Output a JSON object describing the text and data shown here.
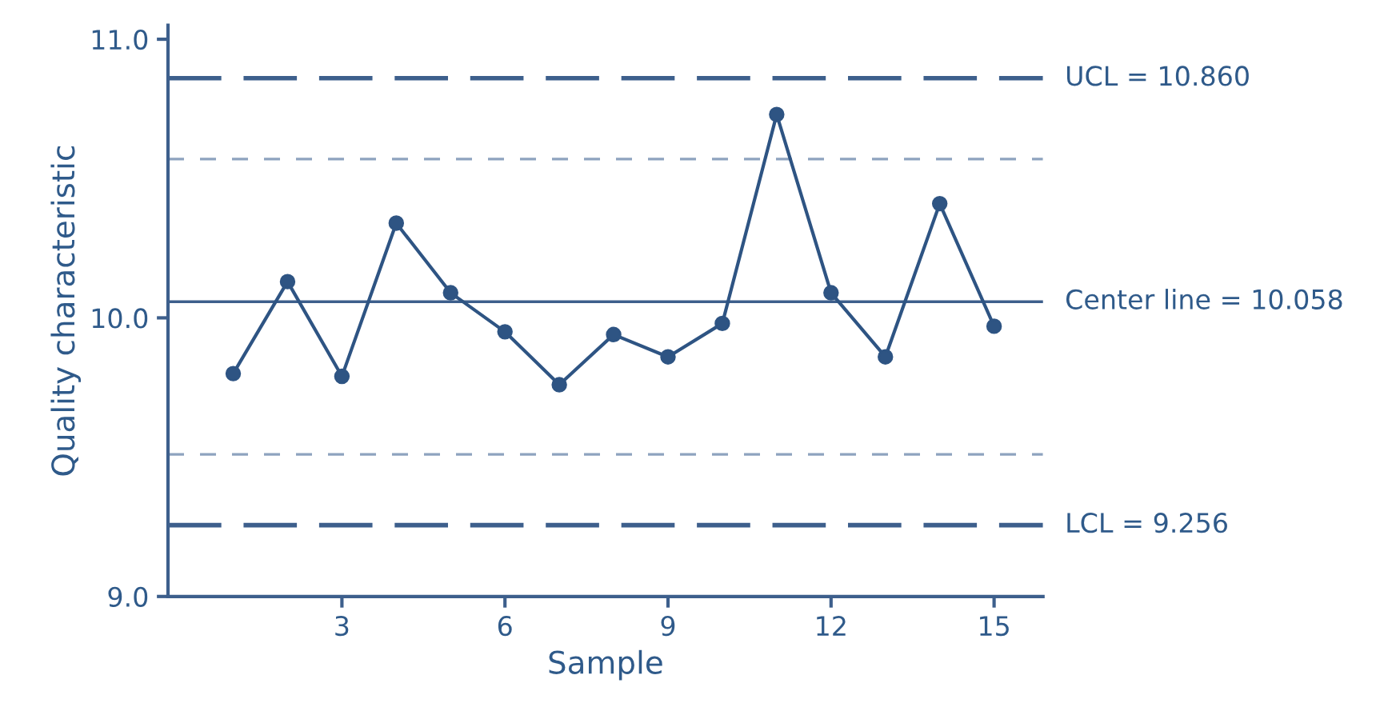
{
  "chart_data": {
    "type": "line",
    "xlabel": "Sample",
    "ylabel": "Quality characteristic",
    "x": [
      1,
      2,
      3,
      4,
      5,
      6,
      7,
      8,
      9,
      10,
      11,
      12,
      13,
      14,
      15
    ],
    "series": [
      {
        "color": "#2e5483",
        "values": [
          9.8,
          10.13,
          9.79,
          10.34,
          10.09,
          9.95,
          9.76,
          9.94,
          9.86,
          9.98,
          10.73,
          10.09,
          9.86,
          10.41,
          9.97
        ]
      }
    ],
    "marker": "circle",
    "line_style": "solid",
    "xlim": [
      -0.2,
      15.9
    ],
    "xticks": [
      3,
      6,
      9,
      12,
      15
    ],
    "ylim": [
      9.0,
      11.05
    ],
    "yticks": [
      {
        "value": 9.0,
        "label": "9.0"
      },
      {
        "value": 10.0,
        "label": "10.0"
      },
      {
        "value": 11.0,
        "label": "11.0"
      }
    ],
    "ref_lines": [
      {
        "axis": "y",
        "value": 10.86,
        "label": "UCL = 10.860",
        "color": "#3d5f8c",
        "line_style": "longdash"
      },
      {
        "axis": "y",
        "value": 10.57,
        "label": null,
        "color": "#8ea3bf",
        "line_style": "dashed"
      },
      {
        "axis": "y",
        "value": 10.058,
        "label": "Center line = 10.058",
        "color": "#3d5f8c",
        "line_style": "solid"
      },
      {
        "axis": "y",
        "value": 9.51,
        "label": null,
        "color": "#8ea3bf",
        "line_style": "dashed"
      },
      {
        "axis": "y",
        "value": 9.256,
        "label": "LCL = 9.256",
        "color": "#3d5f8c",
        "line_style": "longdash"
      }
    ],
    "grid": false,
    "legend": false
  }
}
